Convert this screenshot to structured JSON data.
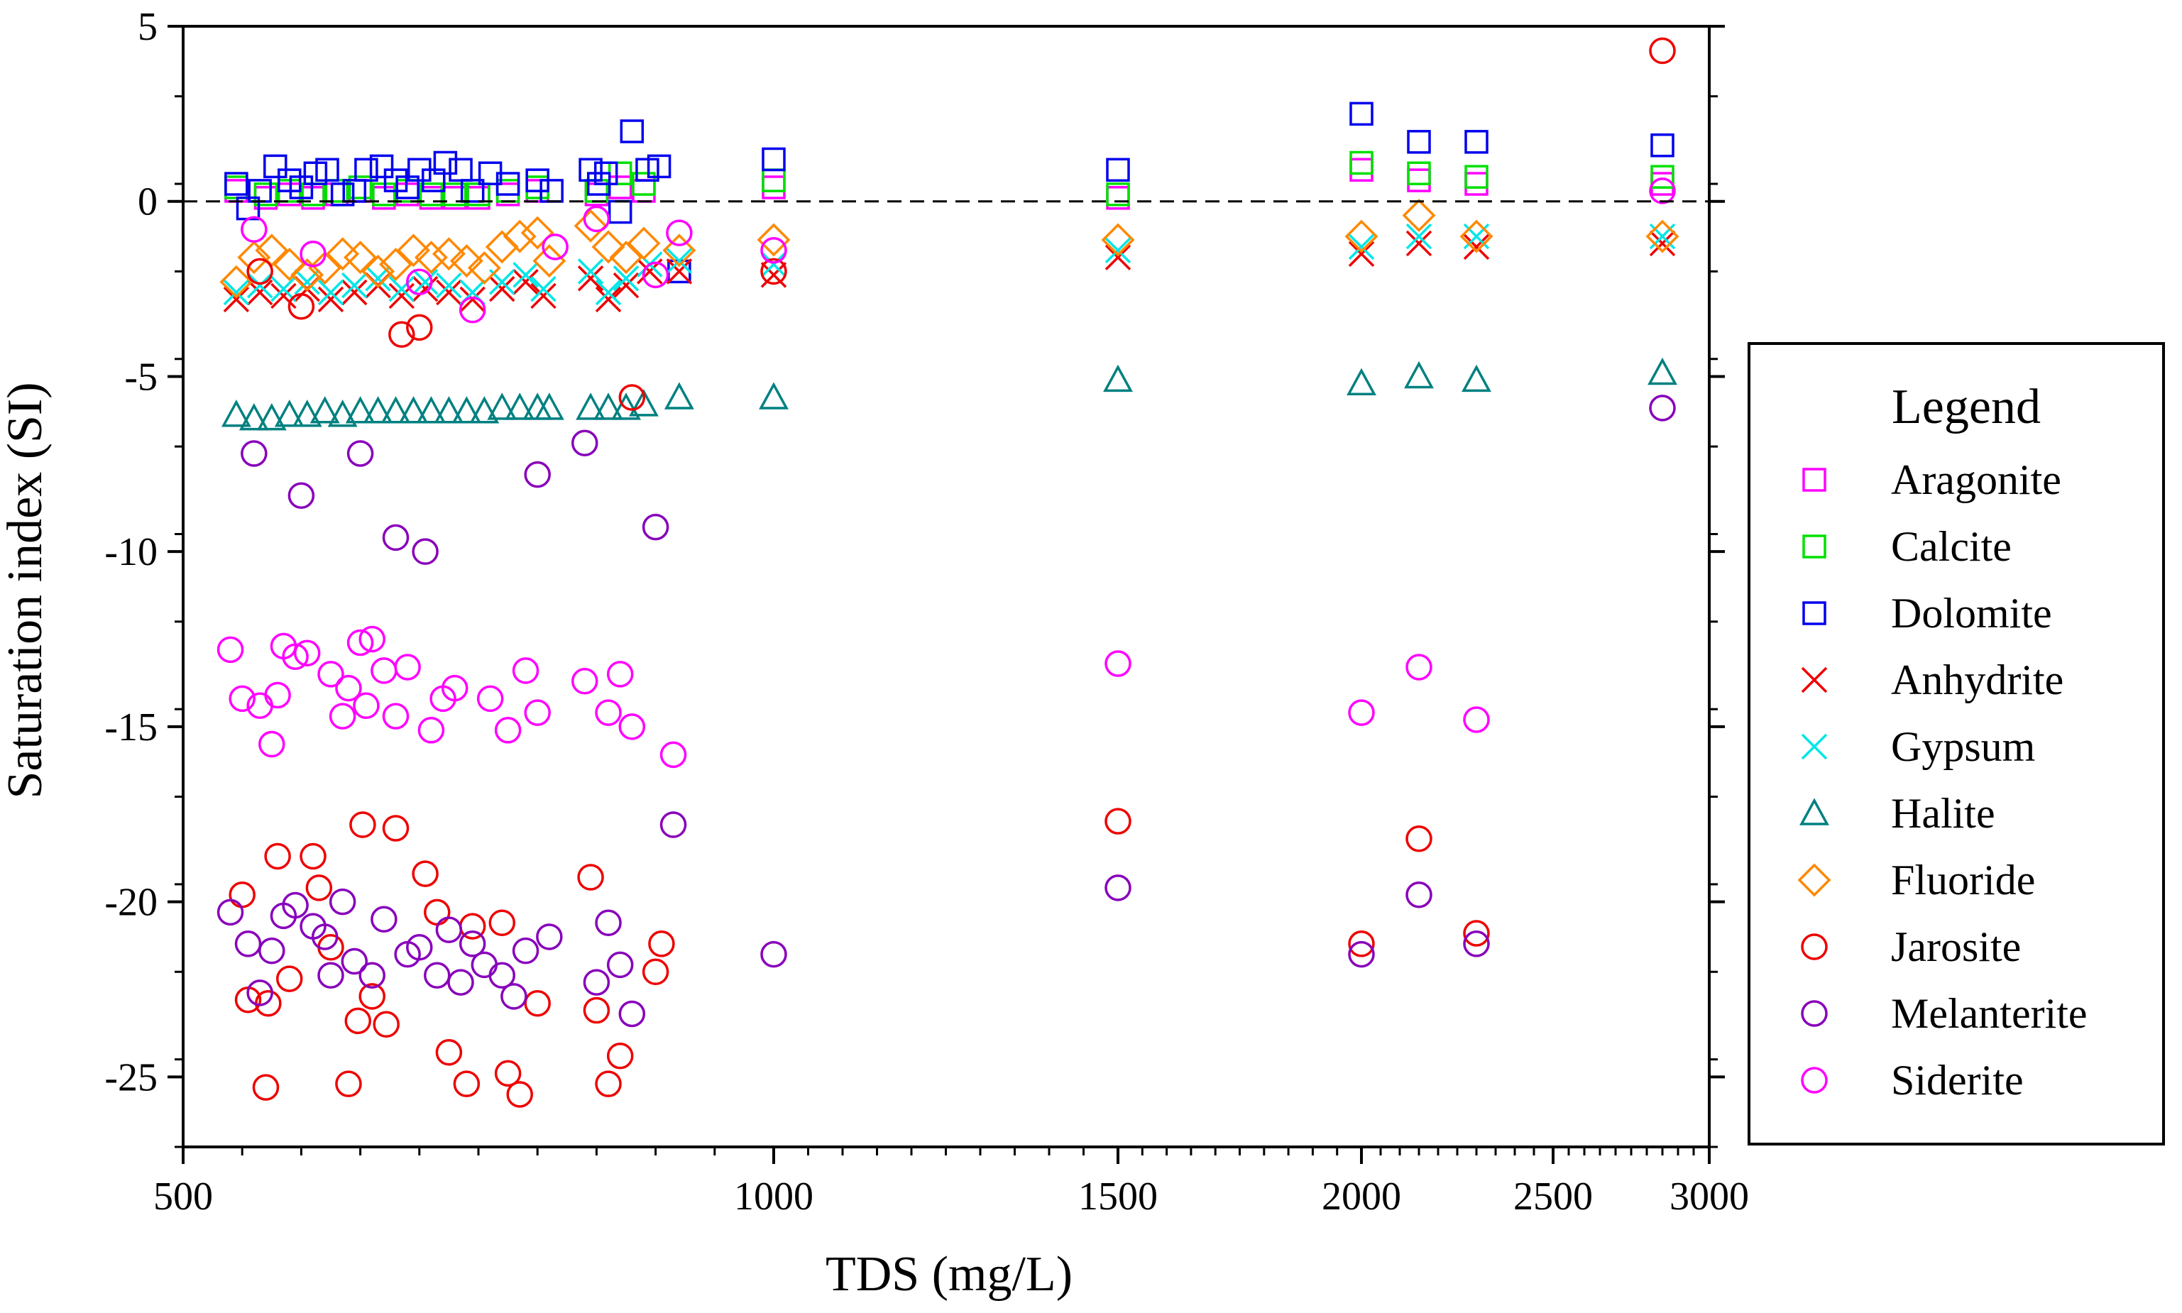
{
  "chart_data": {
    "type": "scatter",
    "title": "",
    "xlabel": "TDS (mg/L)",
    "ylabel": "Saturation index (SI)",
    "xlim": [
      500,
      3000
    ],
    "ylim": [
      -27,
      5
    ],
    "xscale": "custom",
    "xticks": [
      500,
      1000,
      1500,
      2000,
      2500,
      3000
    ],
    "yticks": [
      5,
      0,
      -5,
      -10,
      -15,
      -20,
      -25
    ],
    "reference_line": 0,
    "legend": {
      "title": "Legend",
      "placement": "right"
    },
    "series": [
      {
        "name": "Aragonite",
        "marker": "square",
        "color": "#ff00ff",
        "x": [
          545,
          570,
          590,
          610,
          630,
          650,
          670,
          690,
          710,
          730,
          750,
          775,
          800,
          850,
          870,
          890,
          1000,
          1500,
          2000,
          2150,
          2300,
          2850
        ],
        "y": [
          0.3,
          0.1,
          0.2,
          0.1,
          0.2,
          0.3,
          0.1,
          0.2,
          0.1,
          0.1,
          0.1,
          0.2,
          0.3,
          0.2,
          0.4,
          0.3,
          0.4,
          0.1,
          0.9,
          0.6,
          0.5,
          0.5
        ]
      },
      {
        "name": "Calcite",
        "marker": "square",
        "color": "#00e000",
        "x": [
          545,
          570,
          590,
          610,
          630,
          650,
          670,
          690,
          710,
          730,
          750,
          775,
          800,
          850,
          870,
          890,
          1000,
          1500,
          2000,
          2150,
          2300,
          2850
        ],
        "y": [
          0.4,
          0.2,
          0.3,
          0.2,
          0.3,
          0.4,
          0.2,
          0.3,
          0.2,
          0.2,
          0.2,
          0.3,
          0.4,
          0.3,
          0.8,
          0.5,
          0.6,
          0.2,
          1.1,
          0.8,
          0.7,
          0.7
        ]
      },
      {
        "name": "Dolomite",
        "marker": "square",
        "color": "#0000ee",
        "x": [
          545,
          555,
          565,
          578,
          590,
          600,
          612,
          622,
          635,
          645,
          655,
          668,
          680,
          690,
          700,
          712,
          722,
          735,
          745,
          760,
          775,
          800,
          812,
          845,
          852,
          858,
          870,
          880,
          893,
          903,
          920,
          1000,
          1500,
          2000,
          2150,
          2300,
          2850
        ],
        "y": [
          0.5,
          -0.2,
          0.3,
          1.0,
          0.6,
          0.4,
          0.8,
          0.9,
          0.2,
          0.3,
          0.9,
          1.0,
          0.6,
          0.4,
          0.9,
          0.6,
          1.1,
          0.9,
          0.3,
          0.8,
          0.5,
          0.6,
          0.3,
          0.9,
          0.5,
          0.8,
          -0.3,
          2.0,
          0.9,
          1.0,
          -2.0,
          1.2,
          0.9,
          2.5,
          1.7,
          1.7,
          1.6
        ]
      },
      {
        "name": "Anhydrite",
        "marker": "x",
        "color": "#ee0000",
        "x": [
          545,
          565,
          585,
          605,
          625,
          645,
          665,
          685,
          705,
          725,
          745,
          770,
          790,
          805,
          845,
          860,
          875,
          895,
          920,
          1000,
          1500,
          2000,
          2150,
          2300,
          2850
        ],
        "y": [
          -2.8,
          -2.6,
          -2.7,
          -2.5,
          -2.8,
          -2.6,
          -2.4,
          -2.7,
          -2.5,
          -2.6,
          -2.8,
          -2.5,
          -2.3,
          -2.7,
          -2.2,
          -2.8,
          -2.4,
          -2.0,
          -2.0,
          -2.1,
          -1.6,
          -1.5,
          -1.2,
          -1.3,
          -1.2
        ]
      },
      {
        "name": "Gypsum",
        "marker": "x",
        "color": "#00e6e6",
        "x": [
          545,
          565,
          585,
          605,
          625,
          645,
          665,
          685,
          705,
          725,
          745,
          770,
          790,
          805,
          845,
          860,
          875,
          895,
          920,
          1000,
          1500,
          2000,
          2150,
          2300,
          2850
        ],
        "y": [
          -2.6,
          -2.4,
          -2.5,
          -2.3,
          -2.6,
          -2.4,
          -2.2,
          -2.5,
          -2.3,
          -2.4,
          -2.6,
          -2.3,
          -2.1,
          -2.5,
          -2.0,
          -2.6,
          -2.2,
          -1.8,
          -1.7,
          -1.8,
          -1.4,
          -1.3,
          -1.0,
          -1.0,
          -1.0
        ]
      },
      {
        "name": "Halite",
        "marker": "triangle",
        "color": "#008080",
        "x": [
          545,
          560,
          575,
          590,
          605,
          620,
          635,
          650,
          665,
          680,
          695,
          710,
          725,
          740,
          755,
          770,
          785,
          800,
          810,
          845,
          860,
          875,
          890,
          920,
          1000,
          1500,
          2000,
          2150,
          2300,
          2850
        ],
        "y": [
          -6.1,
          -6.2,
          -6.2,
          -6.1,
          -6.1,
          -6.0,
          -6.1,
          -6.0,
          -6.0,
          -6.0,
          -6.0,
          -6.0,
          -6.0,
          -6.0,
          -6.0,
          -5.9,
          -5.9,
          -5.9,
          -5.9,
          -5.9,
          -5.9,
          -5.9,
          -5.8,
          -5.6,
          -5.6,
          -5.1,
          -5.2,
          -5.0,
          -5.1,
          -4.9
        ]
      },
      {
        "name": "Fluoride",
        "marker": "diamond",
        "color": "#ff8800",
        "x": [
          545,
          560,
          575,
          590,
          605,
          620,
          635,
          650,
          665,
          680,
          695,
          710,
          725,
          740,
          755,
          770,
          785,
          800,
          810,
          845,
          860,
          875,
          890,
          920,
          1000,
          1500,
          2000,
          2150,
          2300,
          2850
        ],
        "y": [
          -2.3,
          -1.6,
          -1.4,
          -1.8,
          -2.1,
          -1.9,
          -1.5,
          -1.6,
          -2.0,
          -1.8,
          -1.4,
          -1.6,
          -1.5,
          -1.7,
          -1.9,
          -1.3,
          -1.0,
          -0.9,
          -1.7,
          -0.7,
          -1.3,
          -1.6,
          -1.2,
          -1.4,
          -1.1,
          -1.1,
          -1.0,
          -0.4,
          -1.0,
          -1.0
        ]
      },
      {
        "name": "Jarosite",
        "marker": "circle",
        "color": "#ee0000",
        "x": [
          550,
          555,
          565,
          570,
          572,
          580,
          590,
          600,
          610,
          615,
          625,
          640,
          648,
          652,
          660,
          672,
          680,
          685,
          700,
          705,
          715,
          725,
          740,
          745,
          770,
          775,
          785,
          800,
          845,
          850,
          860,
          870,
          880,
          900,
          905,
          1000,
          1500,
          2000,
          2150,
          2300,
          2850
        ],
        "y": [
          -19.8,
          -22.8,
          -2.0,
          -25.3,
          -22.9,
          -18.7,
          -22.2,
          -3.0,
          -18.7,
          -19.6,
          -21.3,
          -25.2,
          -23.4,
          -17.8,
          -22.7,
          -23.5,
          -17.9,
          -3.8,
          -3.6,
          -19.2,
          -20.3,
          -24.3,
          -25.2,
          -20.7,
          -20.6,
          -24.9,
          -25.5,
          -22.9,
          -19.3,
          -23.1,
          -25.2,
          -24.4,
          -5.6,
          -22.0,
          -21.2,
          -2.0,
          -17.7,
          -21.2,
          -18.2,
          -20.9,
          4.3
        ],
        "count_note": "circles"
      },
      {
        "name": "Melanterite",
        "marker": "circle",
        "color": "#8800bb",
        "x": [
          540,
          555,
          560,
          565,
          575,
          585,
          595,
          600,
          610,
          620,
          625,
          635,
          645,
          650,
          660,
          670,
          680,
          690,
          700,
          705,
          715,
          725,
          735,
          745,
          755,
          770,
          780,
          790,
          800,
          810,
          840,
          850,
          860,
          870,
          880,
          900,
          915,
          1000,
          1500,
          2000,
          2150,
          2300,
          2850
        ],
        "y": [
          -20.3,
          -21.2,
          -7.2,
          -22.6,
          -21.4,
          -20.4,
          -20.1,
          -8.4,
          -20.7,
          -21.0,
          -22.1,
          -20.0,
          -21.7,
          -7.2,
          -22.1,
          -20.5,
          -9.6,
          -21.5,
          -21.3,
          -10.0,
          -22.1,
          -20.8,
          -22.3,
          -21.2,
          -21.8,
          -22.1,
          -22.7,
          -21.4,
          -7.8,
          -21.0,
          -6.9,
          -22.3,
          -20.6,
          -21.8,
          -23.2,
          -9.3,
          -17.8,
          -21.5,
          -19.6,
          -21.5,
          -19.8,
          -21.2,
          -5.9
        ]
      },
      {
        "name": "Siderite",
        "marker": "circle",
        "color": "#ff00ff",
        "x": [
          540,
          550,
          560,
          565,
          575,
          580,
          585,
          595,
          605,
          610,
          625,
          635,
          640,
          650,
          655,
          660,
          670,
          680,
          690,
          700,
          710,
          720,
          730,
          745,
          760,
          775,
          790,
          800,
          815,
          840,
          850,
          860,
          870,
          880,
          900,
          915,
          920,
          1000,
          1500,
          2000,
          2150,
          2300,
          2850
        ],
        "y": [
          -12.8,
          -14.2,
          -0.8,
          -14.4,
          -15.5,
          -14.1,
          -12.7,
          -13.0,
          -12.9,
          -1.5,
          -13.5,
          -14.7,
          -13.9,
          -12.6,
          -14.4,
          -12.5,
          -13.4,
          -14.7,
          -13.3,
          -2.3,
          -15.1,
          -14.2,
          -13.9,
          -3.1,
          -14.2,
          -15.1,
          -13.4,
          -14.6,
          -1.3,
          -13.7,
          -0.5,
          -14.6,
          -13.5,
          -15.0,
          -2.1,
          -15.8,
          -0.9,
          -1.4,
          -13.2,
          -14.6,
          -13.3,
          -14.8,
          0.3
        ]
      }
    ]
  }
}
